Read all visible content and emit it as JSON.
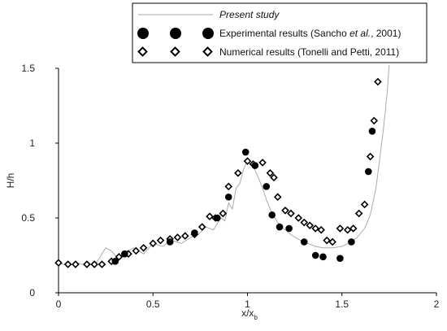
{
  "chart_data": {
    "type": "scatter",
    "xlabel": "x/x",
    "xlabel_sub": "b",
    "ylabel": "H/h",
    "xlim": [
      0,
      2
    ],
    "ylim": [
      0,
      1.5
    ],
    "x_ticks": [
      "0",
      "0.5",
      "1",
      "1.5",
      "2"
    ],
    "y_ticks": [
      "0",
      "0.5",
      "1",
      "1.5"
    ],
    "grid": false,
    "legend_position": "top-right",
    "legend": {
      "present": "Present study",
      "experimental_prefix": "Experimental results (Sancho ",
      "experimental_etal": "et al.",
      "experimental_suffix": ", 2001)",
      "numerical": "Numerical results (Tonelli and Petti, 2011)"
    },
    "series": [
      {
        "key": "present",
        "style": "line",
        "color": "#aaaaaa",
        "x": [
          0.0,
          0.05,
          0.1,
          0.15,
          0.2,
          0.25,
          0.28,
          0.32,
          0.35,
          0.4,
          0.45,
          0.5,
          0.55,
          0.6,
          0.65,
          0.7,
          0.74,
          0.78,
          0.82,
          0.86,
          0.88,
          0.9,
          0.92,
          0.94,
          0.96,
          0.98,
          1.0,
          1.02,
          1.04,
          1.06,
          1.08,
          1.1,
          1.12,
          1.14,
          1.16,
          1.18,
          1.2,
          1.24,
          1.28,
          1.32,
          1.36,
          1.4,
          1.45,
          1.5,
          1.55,
          1.58,
          1.62,
          1.65,
          1.68,
          1.7,
          1.72,
          1.74,
          1.75
        ],
        "y": [
          0.2,
          0.18,
          0.2,
          0.18,
          0.2,
          0.3,
          0.28,
          0.22,
          0.27,
          0.3,
          0.26,
          0.33,
          0.31,
          0.35,
          0.33,
          0.37,
          0.39,
          0.44,
          0.42,
          0.5,
          0.48,
          0.6,
          0.56,
          0.7,
          0.73,
          0.83,
          0.88,
          0.85,
          0.82,
          0.76,
          0.7,
          0.62,
          0.56,
          0.51,
          0.47,
          0.44,
          0.42,
          0.38,
          0.35,
          0.33,
          0.31,
          0.3,
          0.3,
          0.31,
          0.34,
          0.37,
          0.43,
          0.52,
          0.7,
          0.9,
          1.1,
          1.35,
          1.55
        ]
      },
      {
        "key": "experimental",
        "style": "filled-circle",
        "color": "#000000",
        "x": [
          0.3,
          0.35,
          0.59,
          0.72,
          0.84,
          0.9,
          0.99,
          1.04,
          1.1,
          1.13,
          1.17,
          1.22,
          1.3,
          1.36,
          1.4,
          1.49,
          1.55,
          1.64,
          1.66
        ],
        "y": [
          0.21,
          0.26,
          0.34,
          0.4,
          0.5,
          0.64,
          0.94,
          0.85,
          0.71,
          0.52,
          0.44,
          0.43,
          0.34,
          0.25,
          0.24,
          0.23,
          0.34,
          0.81,
          1.08
        ]
      },
      {
        "key": "numerical",
        "style": "open-diamond",
        "color": "#000000",
        "x": [
          0.0,
          0.05,
          0.09,
          0.15,
          0.19,
          0.23,
          0.28,
          0.32,
          0.37,
          0.41,
          0.45,
          0.5,
          0.54,
          0.59,
          0.63,
          0.67,
          0.72,
          0.76,
          0.8,
          0.83,
          0.87,
          0.9,
          0.95,
          1.0,
          1.03,
          1.08,
          1.12,
          1.14,
          1.16,
          1.2,
          1.23,
          1.27,
          1.3,
          1.33,
          1.36,
          1.39,
          1.42,
          1.45,
          1.49,
          1.53,
          1.56,
          1.59,
          1.62,
          1.65,
          1.67,
          1.69
        ],
        "y": [
          0.2,
          0.19,
          0.19,
          0.19,
          0.19,
          0.19,
          0.21,
          0.24,
          0.26,
          0.28,
          0.3,
          0.33,
          0.35,
          0.36,
          0.37,
          0.38,
          0.39,
          0.44,
          0.51,
          0.5,
          0.53,
          0.71,
          0.8,
          0.88,
          0.86,
          0.87,
          0.8,
          0.77,
          0.64,
          0.55,
          0.53,
          0.5,
          0.47,
          0.45,
          0.43,
          0.42,
          0.35,
          0.34,
          0.43,
          0.42,
          0.43,
          0.53,
          0.59,
          0.91,
          1.15,
          1.41
        ]
      }
    ]
  }
}
